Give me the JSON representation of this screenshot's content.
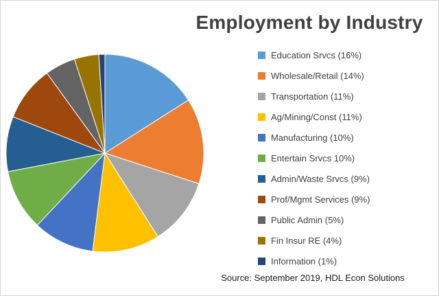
{
  "title": "Employment by Industry",
  "source": "Source: September 2019, HDL Econ Solutions",
  "chart_data": {
    "type": "pie",
    "title": "Employment by Industry",
    "legend_position": "right",
    "start_angle_deg": 0,
    "direction": "clockwise",
    "unit": "percent",
    "slices": [
      {
        "name": "Education Srvcs",
        "label": "Education Srvcs (16%)",
        "value": 16,
        "color": "#5B9BD5"
      },
      {
        "name": "Wholesale/Retail",
        "label": "Wholesale/Retail (14%)",
        "value": 14,
        "color": "#ED7D31"
      },
      {
        "name": "Transportation",
        "label": "Transportation (11%)",
        "value": 11,
        "color": "#A5A5A5"
      },
      {
        "name": "Ag/Mining/Const",
        "label": "Ag/Mining/Const (11%)",
        "value": 11,
        "color": "#FFC000"
      },
      {
        "name": "Manufacturing",
        "label": "Manufacturing (10%)",
        "value": 10,
        "color": "#4472C4"
      },
      {
        "name": "Entertain Srvcs",
        "label": "Entertain Srvcs 10%)",
        "value": 10,
        "color": "#70AD47"
      },
      {
        "name": "Admin/Waste Srvcs",
        "label": "Admin/Waste Srvcs (9%)",
        "value": 9,
        "color": "#255E91"
      },
      {
        "name": "Prof/Mgmt Services",
        "label": "Prof/Mgmt Services (9%)",
        "value": 9,
        "color": "#9E480E"
      },
      {
        "name": "Public Admin",
        "label": "Public Admin (5%)",
        "value": 5,
        "color": "#636363"
      },
      {
        "name": "Fin Insur RE",
        "label": "Fin Insur RE (4%)",
        "value": 4,
        "color": "#997300"
      },
      {
        "name": "Information",
        "label": "Information (1%)",
        "value": 1,
        "color": "#264478"
      }
    ]
  }
}
